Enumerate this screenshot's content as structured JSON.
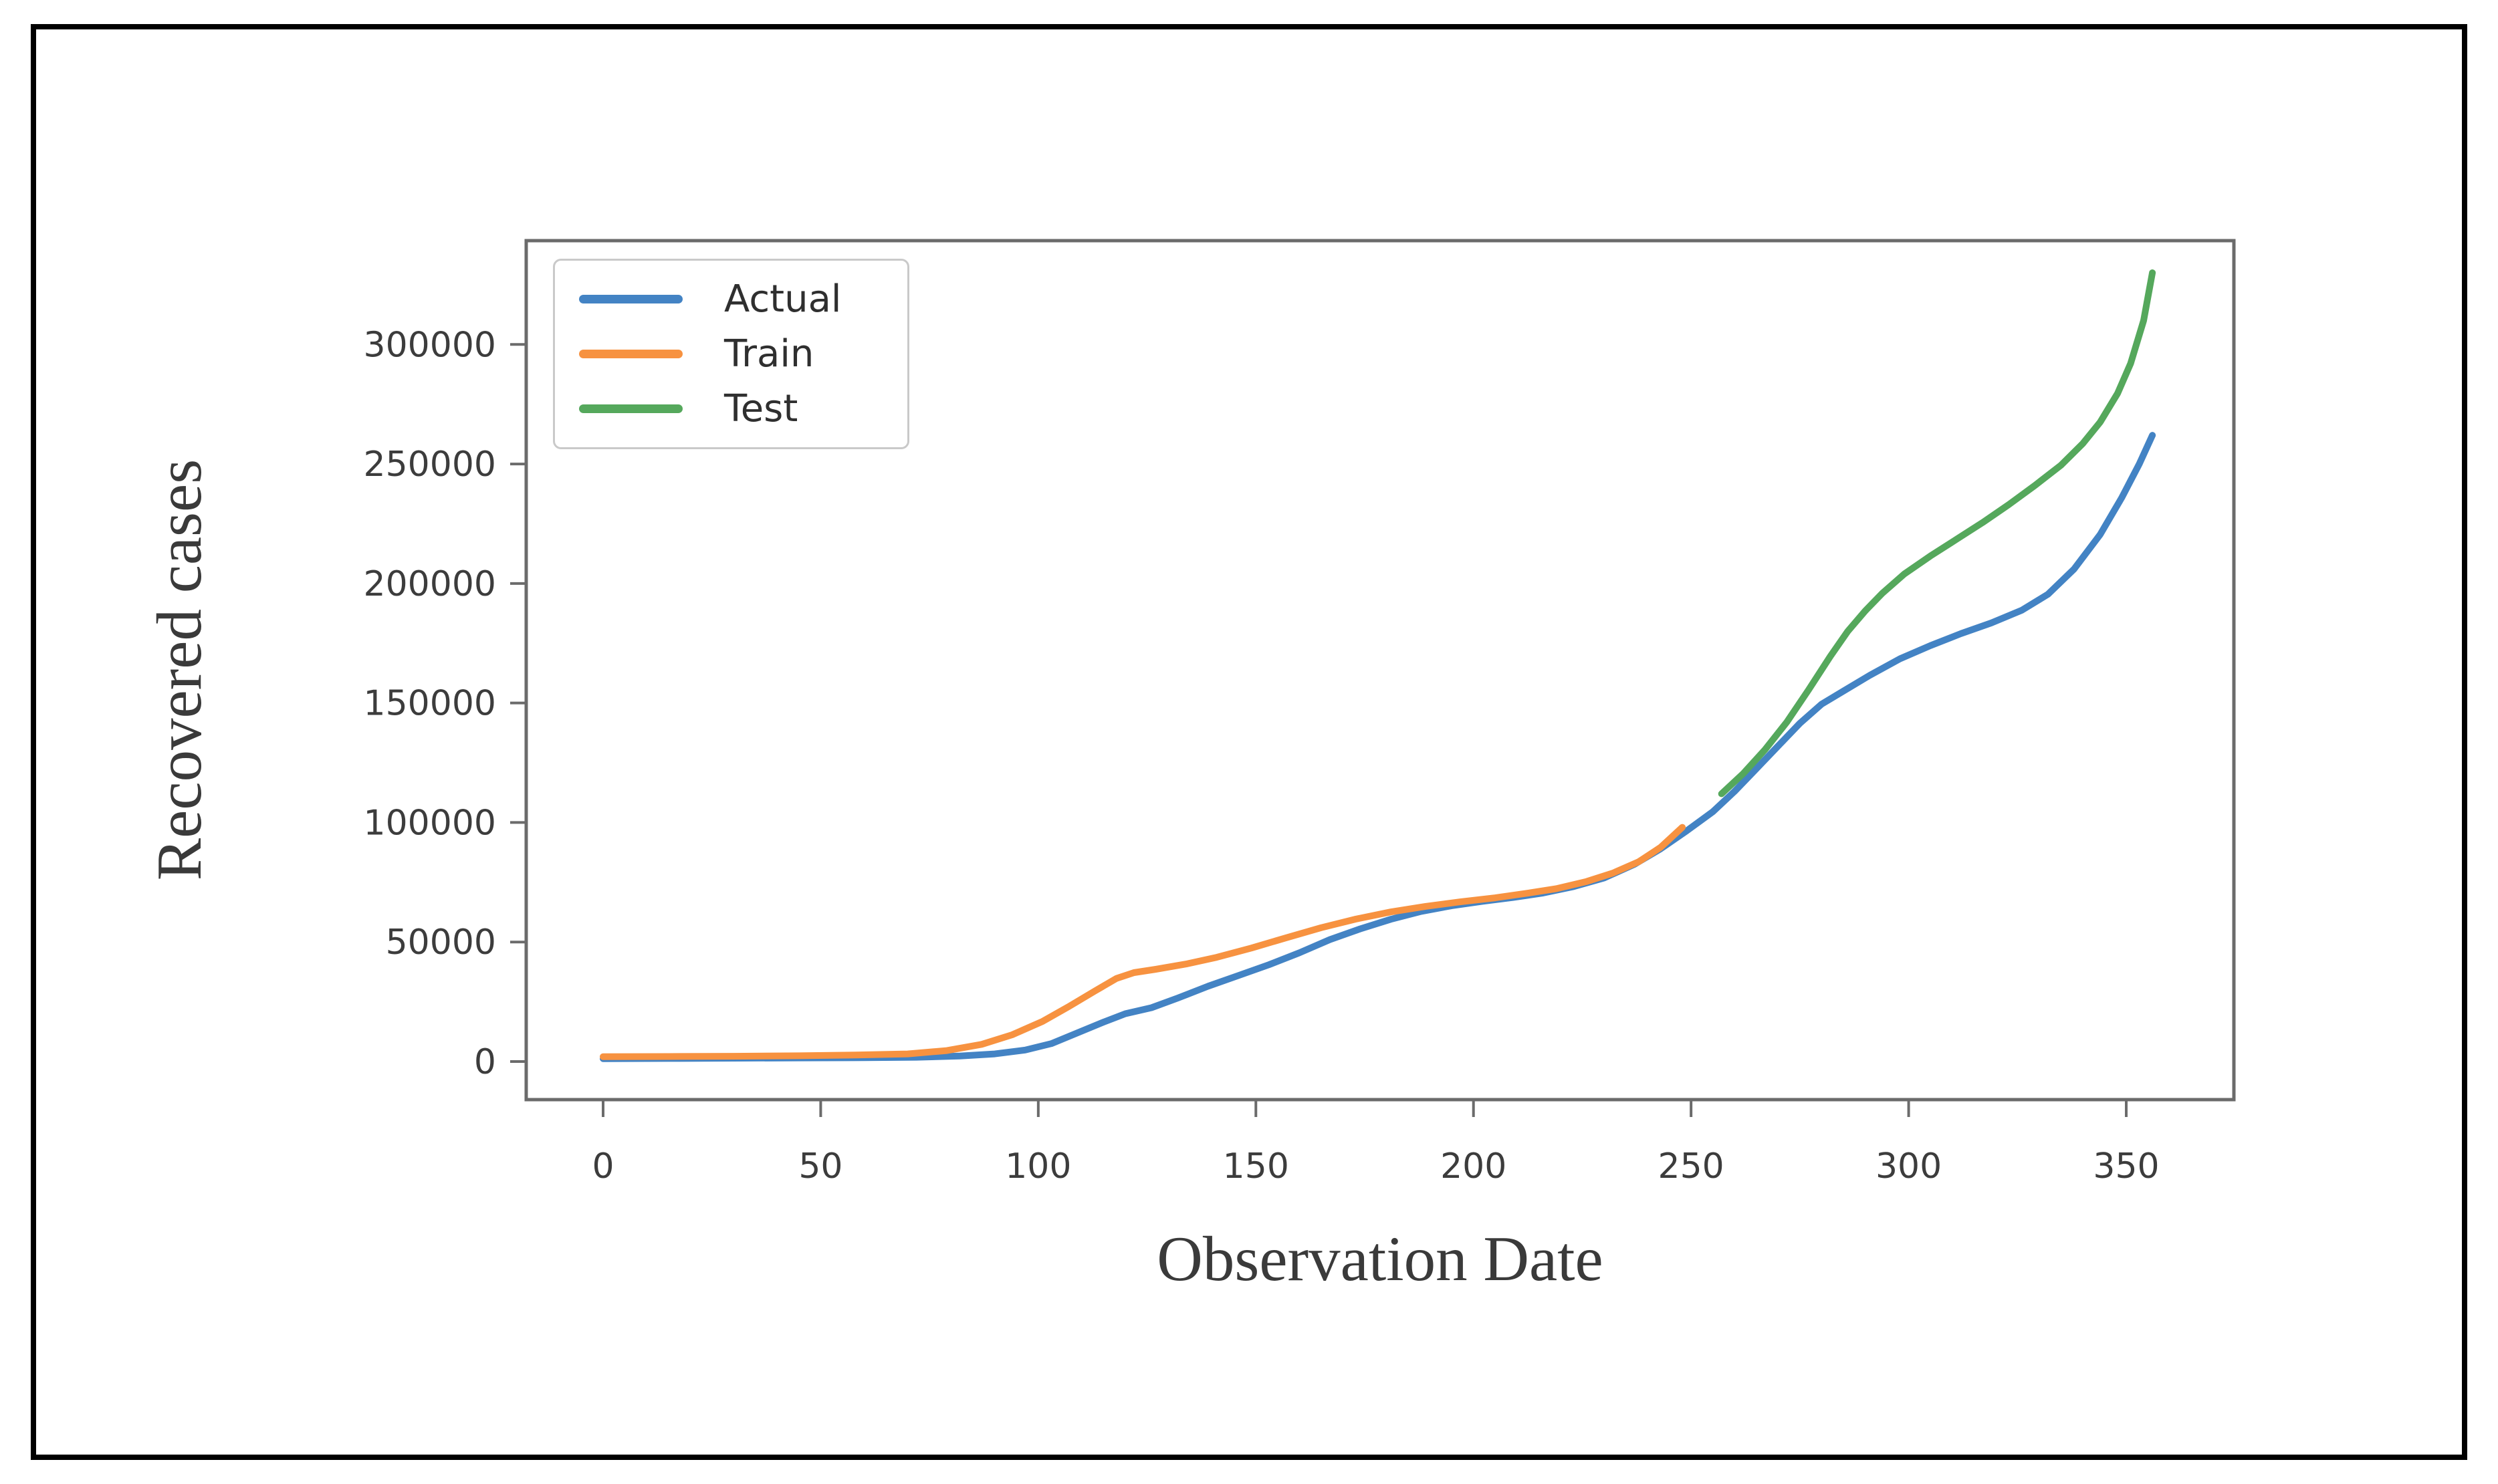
{
  "figure": {
    "border_color": "#000000",
    "background_color": "#ffffff",
    "spine_color": "#6b6b6b",
    "tick_label_color": "#3c3c3c",
    "axis_label_color": "#3a3a3a",
    "legend_border_color": "#c9c9c9"
  },
  "chart_data": {
    "type": "line",
    "title": "",
    "xlabel": "Observation Date",
    "ylabel": "Recovered cases",
    "x_ticks": [
      0,
      50,
      100,
      150,
      200,
      250,
      300,
      350
    ],
    "y_ticks": [
      0,
      50000,
      100000,
      150000,
      200000,
      250000,
      300000
    ],
    "xlim": [
      -17.7,
      374.6
    ],
    "ylim": [
      -16000,
      344500
    ],
    "grid": false,
    "legend_position": "upper-left",
    "series": [
      {
        "name": "Actual",
        "color": "#4383c4",
        "points": [
          [
            0,
            1200
          ],
          [
            15,
            1300
          ],
          [
            30,
            1400
          ],
          [
            45,
            1500
          ],
          [
            60,
            1600
          ],
          [
            72,
            1800
          ],
          [
            82,
            2300
          ],
          [
            90,
            3200
          ],
          [
            97,
            4800
          ],
          [
            103,
            7500
          ],
          [
            109,
            12000
          ],
          [
            115,
            16500
          ],
          [
            120,
            20000
          ],
          [
            126,
            22500
          ],
          [
            132,
            26500
          ],
          [
            139,
            31500
          ],
          [
            146,
            36000
          ],
          [
            153,
            40500
          ],
          [
            160,
            45500
          ],
          [
            167,
            51000
          ],
          [
            174,
            55500
          ],
          [
            181,
            59500
          ],
          [
            188,
            62800
          ],
          [
            195,
            65200
          ],
          [
            202,
            67000
          ],
          [
            209,
            68600
          ],
          [
            216,
            70500
          ],
          [
            223,
            73200
          ],
          [
            230,
            76800
          ],
          [
            237,
            82500
          ],
          [
            243,
            89000
          ],
          [
            249,
            96500
          ],
          [
            255,
            104500
          ],
          [
            260,
            113000
          ],
          [
            265,
            122500
          ],
          [
            270,
            132000
          ],
          [
            275,
            141500
          ],
          [
            280,
            149500
          ],
          [
            285,
            155000
          ],
          [
            291,
            161500
          ],
          [
            298,
            168500
          ],
          [
            305,
            174000
          ],
          [
            312,
            179000
          ],
          [
            319,
            183500
          ],
          [
            326,
            188800
          ],
          [
            332,
            195500
          ],
          [
            338,
            206000
          ],
          [
            344,
            220500
          ],
          [
            349,
            236000
          ],
          [
            353,
            250000
          ],
          [
            356,
            262000
          ]
        ]
      },
      {
        "name": "Train",
        "color": "#f79240",
        "points": [
          [
            0,
            2000
          ],
          [
            15,
            2100
          ],
          [
            30,
            2200
          ],
          [
            45,
            2400
          ],
          [
            58,
            2700
          ],
          [
            70,
            3200
          ],
          [
            79,
            4600
          ],
          [
            87,
            7200
          ],
          [
            94,
            11200
          ],
          [
            101,
            16800
          ],
          [
            107,
            23000
          ],
          [
            113,
            29500
          ],
          [
            118,
            34800
          ],
          [
            122,
            37200
          ],
          [
            127,
            38600
          ],
          [
            134,
            40800
          ],
          [
            141,
            43600
          ],
          [
            149,
            47500
          ],
          [
            157,
            51800
          ],
          [
            165,
            56000
          ],
          [
            173,
            59600
          ],
          [
            181,
            62600
          ],
          [
            189,
            64900
          ],
          [
            197,
            66800
          ],
          [
            205,
            68500
          ],
          [
            212,
            70300
          ],
          [
            219,
            72300
          ],
          [
            226,
            75300
          ],
          [
            232,
            78800
          ],
          [
            238,
            83600
          ],
          [
            243,
            89600
          ],
          [
            248,
            98000
          ]
        ]
      },
      {
        "name": "Test",
        "color": "#55a85c",
        "points": [
          [
            257,
            112000
          ],
          [
            262,
            120500
          ],
          [
            267,
            130500
          ],
          [
            272,
            142000
          ],
          [
            277,
            155500
          ],
          [
            282,
            169500
          ],
          [
            286,
            180000
          ],
          [
            290,
            188500
          ],
          [
            294,
            196000
          ],
          [
            299,
            204000
          ],
          [
            305,
            211500
          ],
          [
            311,
            218500
          ],
          [
            317,
            225500
          ],
          [
            323,
            233000
          ],
          [
            329,
            241000
          ],
          [
            335,
            249500
          ],
          [
            340,
            258500
          ],
          [
            344,
            267500
          ],
          [
            348,
            279500
          ],
          [
            351,
            292000
          ],
          [
            354,
            310000
          ],
          [
            356,
            330000
          ]
        ]
      }
    ]
  }
}
